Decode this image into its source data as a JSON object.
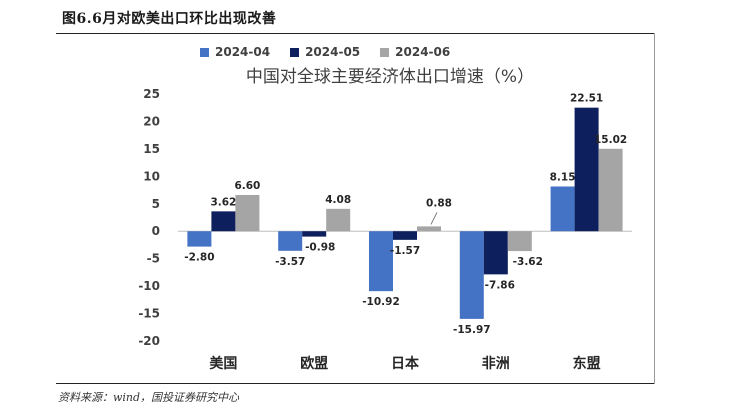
{
  "figure": {
    "title": "图6.6月对欧美出口环比出现改善",
    "source": "资料来源：wind，国投证券研究中心"
  },
  "chart_data": {
    "type": "bar",
    "title": "中国对全球主要经济体出口增速（%）",
    "categories": [
      "美国",
      "欧盟",
      "日本",
      "非洲",
      "东盟"
    ],
    "series": [
      {
        "name": "2024-04",
        "color": "#4472C4",
        "values": [
          -2.8,
          -3.57,
          -10.92,
          -15.97,
          8.15
        ]
      },
      {
        "name": "2024-05",
        "color": "#0D1F5C",
        "values": [
          3.62,
          -0.98,
          -1.57,
          -7.86,
          22.51
        ]
      },
      {
        "name": "2024-06",
        "color": "#A5A5A5",
        "values": [
          6.6,
          4.08,
          0.88,
          -3.62,
          15.02
        ]
      }
    ],
    "yticks": [
      25,
      20,
      15,
      10,
      5,
      0,
      -5,
      -10,
      -15,
      -20
    ],
    "ylim": [
      -20,
      25
    ],
    "legend_position": "top"
  }
}
